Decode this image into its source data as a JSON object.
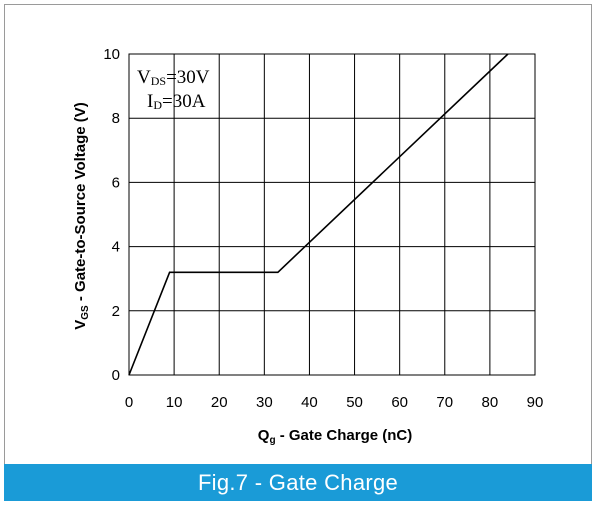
{
  "colors": {
    "caption_bar": "#1a9bd7",
    "frame_border": "#9a9a9a",
    "grid": "#000000",
    "curve": "#000000"
  },
  "caption": "Fig.7 - Gate Charge",
  "chart_data": {
    "type": "line",
    "title": "",
    "xlabel": {
      "main": "Q",
      "sub": "g",
      "rest": " - Gate Charge (nC)"
    },
    "ylabel": {
      "main": "V",
      "sub": "GS",
      "rest": " - Gate-to-Source Voltage (V)"
    },
    "xlim": [
      0,
      90
    ],
    "ylim": [
      0,
      10
    ],
    "xticks": [
      0,
      10,
      20,
      30,
      40,
      50,
      60,
      70,
      80,
      90
    ],
    "yticks": [
      0,
      2,
      4,
      6,
      8,
      10
    ],
    "grid": true,
    "series": [
      {
        "x": [
          0,
          9,
          33,
          84
        ],
        "y": [
          0,
          3.2,
          3.2,
          10
        ]
      }
    ],
    "annotations": [
      {
        "main": "V",
        "sub": "DS",
        "rest": "=30V"
      },
      {
        "main": "I",
        "sub": "D",
        "rest": "=30A"
      }
    ]
  }
}
